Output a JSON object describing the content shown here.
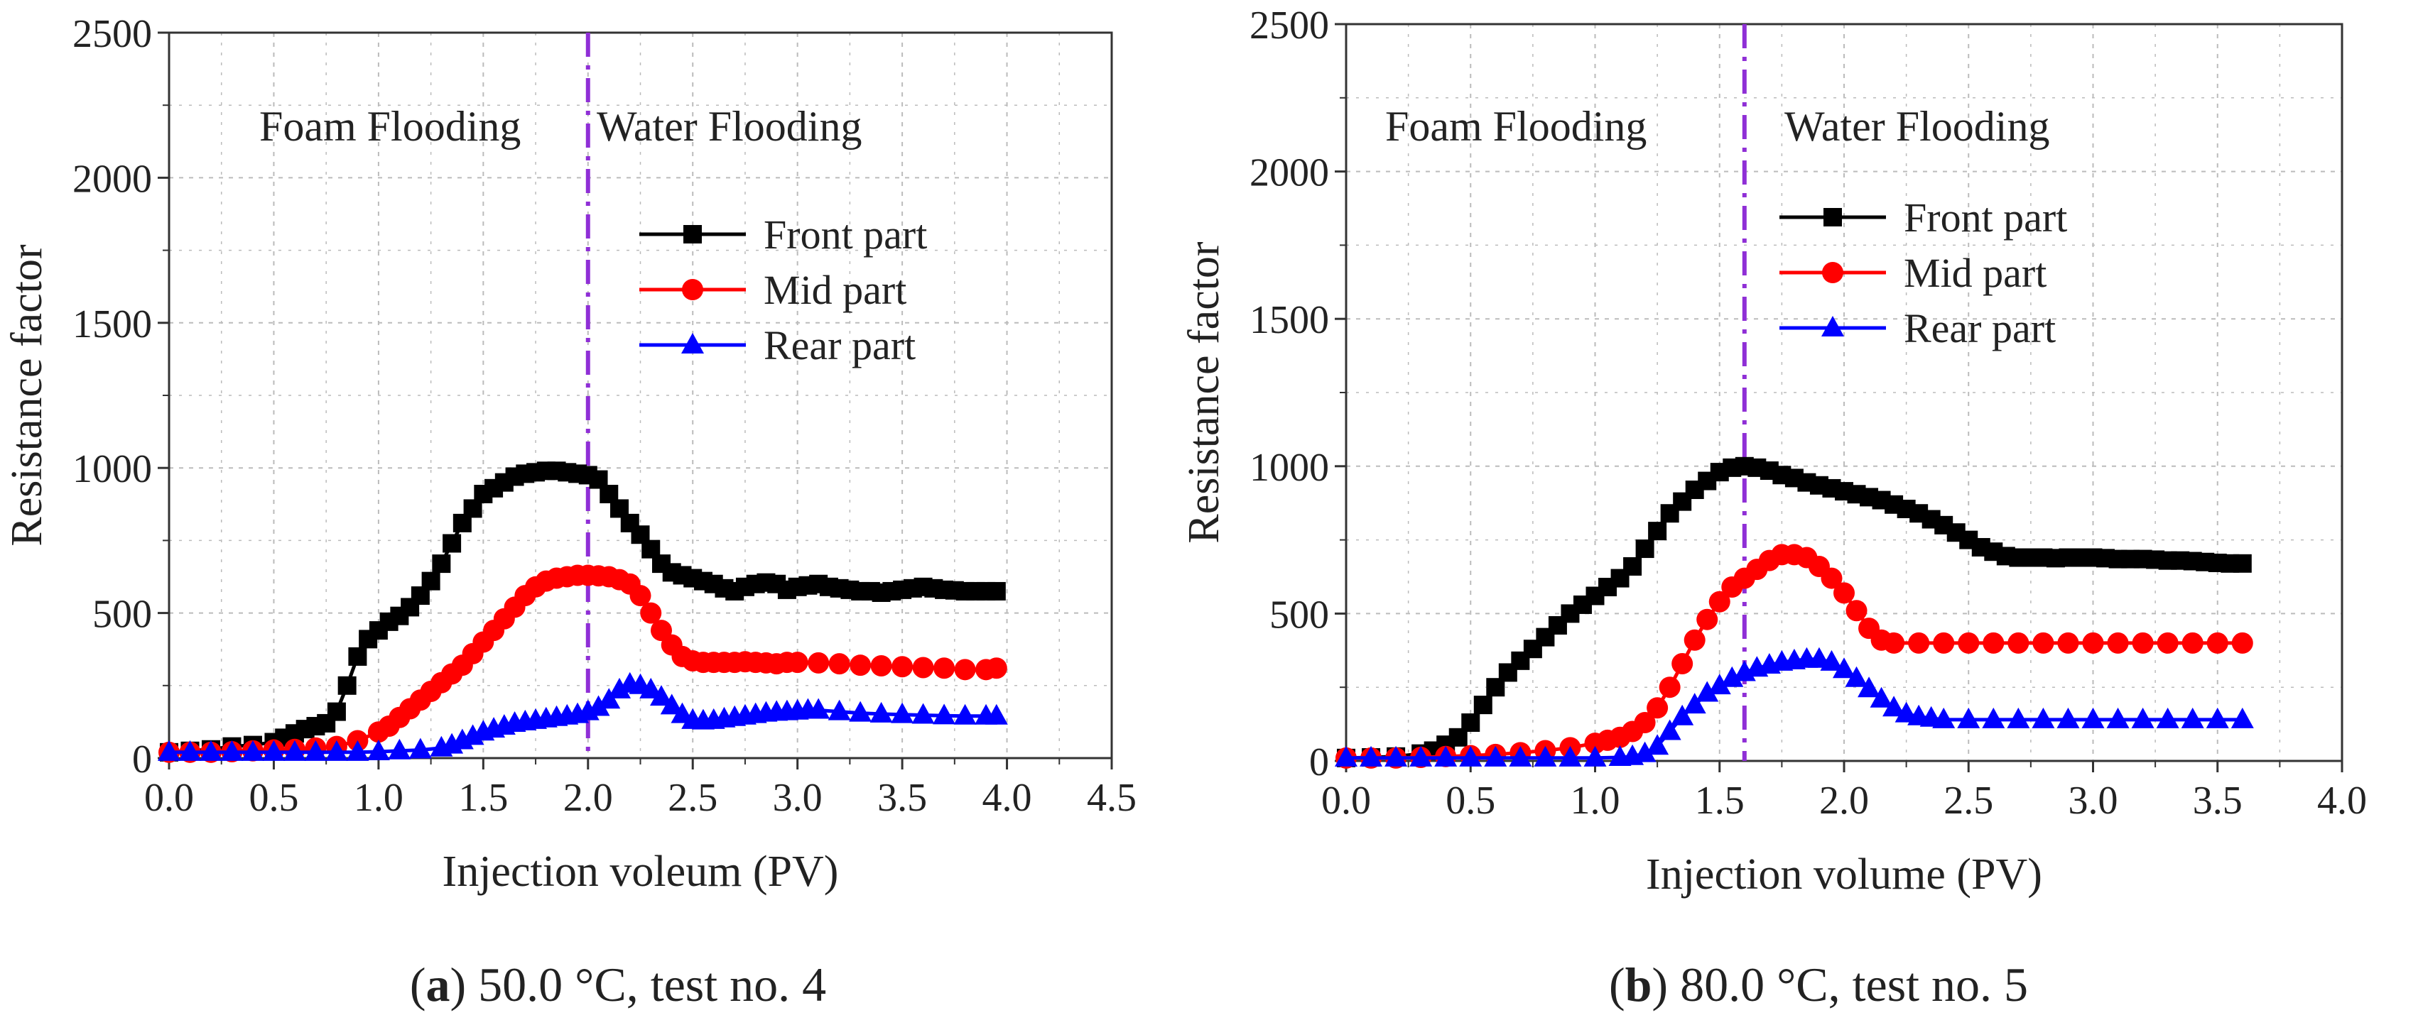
{
  "colors": {
    "front": "#000000",
    "mid": "#ff0000",
    "rear": "#0000ff",
    "boundary": "#8f2fd6",
    "grid": "#bbbbbb",
    "axis": "#333333"
  },
  "chart_data": [
    {
      "type": "line",
      "panel_letter": "a",
      "caption_rest": ") 50.0 °C, test no. 4",
      "xlabel": "Injection voleum (PV)",
      "ylabel": "Resistance factor",
      "xlim": [
        0,
        4.5
      ],
      "ylim": [
        0,
        2500
      ],
      "xticks": [
        "0.0",
        "0.5",
        "1.0",
        "1.5",
        "2.0",
        "2.5",
        "3.0",
        "3.5",
        "4.0",
        "4.5"
      ],
      "yticks": [
        "0",
        "500",
        "1000",
        "1500",
        "2000",
        "2500"
      ],
      "grid": true,
      "boundary_x": 2.0,
      "regions": {
        "left": "Foam Flooding",
        "right": "Water Flooding"
      },
      "legend_position": "center-right",
      "series": [
        {
          "name": "Front part",
          "color_key": "front",
          "marker": "square",
          "x": [
            0.0,
            0.1,
            0.2,
            0.3,
            0.4,
            0.5,
            0.55,
            0.6,
            0.65,
            0.7,
            0.75,
            0.8,
            0.85,
            0.9,
            0.95,
            1.0,
            1.05,
            1.1,
            1.15,
            1.2,
            1.25,
            1.3,
            1.35,
            1.4,
            1.45,
            1.5,
            1.55,
            1.6,
            1.65,
            1.7,
            1.75,
            1.8,
            1.85,
            1.9,
            1.95,
            2.0,
            2.05,
            2.1,
            2.15,
            2.2,
            2.25,
            2.3,
            2.35,
            2.4,
            2.45,
            2.5,
            2.55,
            2.6,
            2.65,
            2.7,
            2.75,
            2.8,
            2.85,
            2.9,
            2.95,
            3.0,
            3.05,
            3.1,
            3.15,
            3.2,
            3.25,
            3.3,
            3.35,
            3.4,
            3.45,
            3.5,
            3.55,
            3.6,
            3.65,
            3.7,
            3.75,
            3.8,
            3.85,
            3.9,
            3.95
          ],
          "y": [
            20,
            25,
            30,
            40,
            45,
            55,
            70,
            85,
            100,
            110,
            120,
            160,
            250,
            350,
            410,
            440,
            470,
            490,
            520,
            560,
            610,
            670,
            740,
            810,
            860,
            910,
            930,
            950,
            970,
            980,
            985,
            990,
            990,
            985,
            980,
            975,
            960,
            910,
            860,
            810,
            770,
            720,
            670,
            640,
            630,
            620,
            610,
            600,
            585,
            575,
            590,
            600,
            605,
            600,
            580,
            590,
            595,
            600,
            590,
            585,
            580,
            575,
            575,
            570,
            575,
            580,
            585,
            590,
            585,
            580,
            578,
            575,
            575,
            575,
            575
          ]
        },
        {
          "name": "Mid part",
          "color_key": "mid",
          "marker": "circle",
          "x": [
            0.0,
            0.1,
            0.2,
            0.3,
            0.4,
            0.5,
            0.6,
            0.7,
            0.8,
            0.9,
            1.0,
            1.05,
            1.1,
            1.15,
            1.2,
            1.25,
            1.3,
            1.35,
            1.4,
            1.45,
            1.5,
            1.55,
            1.6,
            1.65,
            1.7,
            1.75,
            1.8,
            1.85,
            1.9,
            1.95,
            2.0,
            2.05,
            2.1,
            2.15,
            2.2,
            2.25,
            2.3,
            2.35,
            2.4,
            2.45,
            2.5,
            2.55,
            2.6,
            2.65,
            2.7,
            2.75,
            2.8,
            2.85,
            2.9,
            2.95,
            3.0,
            3.1,
            3.2,
            3.3,
            3.4,
            3.5,
            3.6,
            3.7,
            3.8,
            3.9,
            3.95
          ],
          "y": [
            20,
            20,
            20,
            22,
            25,
            28,
            30,
            35,
            40,
            60,
            90,
            110,
            140,
            170,
            200,
            230,
            260,
            290,
            320,
            360,
            400,
            440,
            480,
            520,
            560,
            590,
            610,
            620,
            625,
            630,
            630,
            628,
            625,
            615,
            600,
            560,
            500,
            440,
            390,
            350,
            335,
            330,
            330,
            330,
            330,
            332,
            330,
            328,
            325,
            330,
            330,
            328,
            325,
            320,
            318,
            315,
            312,
            310,
            305,
            305,
            310
          ]
        },
        {
          "name": "Rear part",
          "color_key": "rear",
          "marker": "triangle",
          "x": [
            0.0,
            0.1,
            0.2,
            0.3,
            0.4,
            0.5,
            0.6,
            0.7,
            0.8,
            0.9,
            1.0,
            1.1,
            1.2,
            1.3,
            1.35,
            1.4,
            1.45,
            1.5,
            1.55,
            1.6,
            1.65,
            1.7,
            1.75,
            1.8,
            1.85,
            1.9,
            1.95,
            2.0,
            2.05,
            2.1,
            2.15,
            2.2,
            2.25,
            2.3,
            2.35,
            2.4,
            2.45,
            2.5,
            2.55,
            2.6,
            2.65,
            2.7,
            2.75,
            2.8,
            2.85,
            2.9,
            2.95,
            3.0,
            3.05,
            3.1,
            3.2,
            3.3,
            3.4,
            3.5,
            3.6,
            3.7,
            3.8,
            3.9,
            3.95
          ],
          "y": [
            20,
            20,
            20,
            20,
            20,
            20,
            20,
            20,
            20,
            20,
            22,
            25,
            28,
            35,
            45,
            60,
            75,
            90,
            100,
            110,
            120,
            125,
            130,
            135,
            140,
            145,
            150,
            160,
            175,
            200,
            235,
            255,
            250,
            235,
            210,
            180,
            150,
            130,
            128,
            130,
            135,
            140,
            145,
            150,
            155,
            158,
            160,
            162,
            165,
            165,
            160,
            155,
            152,
            150,
            148,
            146,
            145,
            145,
            145
          ]
        }
      ]
    },
    {
      "type": "line",
      "panel_letter": "b",
      "caption_rest": ") 80.0 °C, test no. 5",
      "xlabel": "Injection volume (PV)",
      "ylabel": "Resistance factor",
      "xlim": [
        0,
        4.0
      ],
      "ylim": [
        0,
        2500
      ],
      "xticks": [
        "0.0",
        "0.5",
        "1.0",
        "1.5",
        "2.0",
        "2.5",
        "3.0",
        "3.5",
        "4.0"
      ],
      "yticks": [
        "0",
        "500",
        "1000",
        "1500",
        "2000",
        "2500"
      ],
      "grid": true,
      "boundary_x": 1.6,
      "regions": {
        "left": "Foam Flooding",
        "right": "Water Flooding"
      },
      "legend_position": "upper-right",
      "series": [
        {
          "name": "Front part",
          "color_key": "front",
          "marker": "square",
          "x": [
            0.0,
            0.1,
            0.2,
            0.3,
            0.35,
            0.4,
            0.45,
            0.5,
            0.55,
            0.6,
            0.65,
            0.7,
            0.75,
            0.8,
            0.85,
            0.9,
            0.95,
            1.0,
            1.05,
            1.1,
            1.15,
            1.2,
            1.25,
            1.3,
            1.35,
            1.4,
            1.45,
            1.5,
            1.55,
            1.6,
            1.65,
            1.7,
            1.75,
            1.8,
            1.85,
            1.9,
            1.95,
            2.0,
            2.05,
            2.1,
            2.15,
            2.2,
            2.25,
            2.3,
            2.35,
            2.4,
            2.45,
            2.5,
            2.55,
            2.6,
            2.65,
            2.7,
            2.75,
            2.8,
            2.85,
            2.9,
            2.95,
            3.0,
            3.05,
            3.1,
            3.15,
            3.2,
            3.25,
            3.3,
            3.35,
            3.4,
            3.45,
            3.5,
            3.55,
            3.6
          ],
          "y": [
            10,
            12,
            15,
            25,
            35,
            55,
            80,
            130,
            190,
            250,
            300,
            340,
            380,
            420,
            460,
            500,
            530,
            560,
            590,
            620,
            660,
            720,
            780,
            840,
            880,
            920,
            950,
            980,
            995,
            1000,
            995,
            985,
            970,
            960,
            945,
            935,
            925,
            915,
            905,
            895,
            885,
            870,
            855,
            840,
            820,
            800,
            775,
            750,
            725,
            710,
            695,
            690,
            690,
            690,
            688,
            690,
            690,
            690,
            688,
            685,
            685,
            685,
            683,
            680,
            680,
            678,
            675,
            672,
            670,
            670
          ]
        },
        {
          "name": "Mid part",
          "color_key": "mid",
          "marker": "circle",
          "x": [
            0.0,
            0.1,
            0.2,
            0.3,
            0.4,
            0.5,
            0.6,
            0.7,
            0.8,
            0.9,
            1.0,
            1.05,
            1.1,
            1.15,
            1.2,
            1.25,
            1.3,
            1.35,
            1.4,
            1.45,
            1.5,
            1.55,
            1.6,
            1.65,
            1.7,
            1.75,
            1.8,
            1.85,
            1.9,
            1.95,
            2.0,
            2.05,
            2.1,
            2.15,
            2.2,
            2.3,
            2.4,
            2.5,
            2.6,
            2.7,
            2.8,
            2.9,
            3.0,
            3.1,
            3.2,
            3.3,
            3.4,
            3.5,
            3.6
          ],
          "y": [
            10,
            10,
            10,
            12,
            15,
            18,
            22,
            28,
            35,
            45,
            60,
            70,
            80,
            100,
            130,
            180,
            250,
            330,
            410,
            480,
            540,
            590,
            620,
            650,
            680,
            700,
            700,
            690,
            660,
            620,
            570,
            510,
            450,
            410,
            400,
            400,
            400,
            400,
            400,
            400,
            400,
            400,
            400,
            400,
            400,
            400,
            400,
            400,
            400
          ]
        },
        {
          "name": "Rear part",
          "color_key": "rear",
          "marker": "triangle",
          "x": [
            0.0,
            0.1,
            0.2,
            0.3,
            0.4,
            0.5,
            0.6,
            0.7,
            0.8,
            0.9,
            1.0,
            1.1,
            1.15,
            1.2,
            1.25,
            1.3,
            1.35,
            1.4,
            1.45,
            1.5,
            1.55,
            1.6,
            1.65,
            1.7,
            1.75,
            1.8,
            1.85,
            1.9,
            1.95,
            2.0,
            2.05,
            2.1,
            2.15,
            2.2,
            2.25,
            2.3,
            2.35,
            2.4,
            2.5,
            2.6,
            2.7,
            2.8,
            2.9,
            3.0,
            3.1,
            3.2,
            3.3,
            3.4,
            3.5,
            3.6
          ],
          "y": [
            10,
            10,
            10,
            10,
            10,
            10,
            10,
            10,
            10,
            10,
            10,
            12,
            15,
            25,
            50,
            100,
            150,
            190,
            230,
            255,
            280,
            300,
            315,
            325,
            335,
            340,
            345,
            345,
            335,
            310,
            280,
            245,
            210,
            180,
            160,
            150,
            145,
            140,
            140,
            140,
            140,
            140,
            140,
            140,
            140,
            140,
            140,
            140,
            140,
            140
          ]
        }
      ]
    }
  ]
}
